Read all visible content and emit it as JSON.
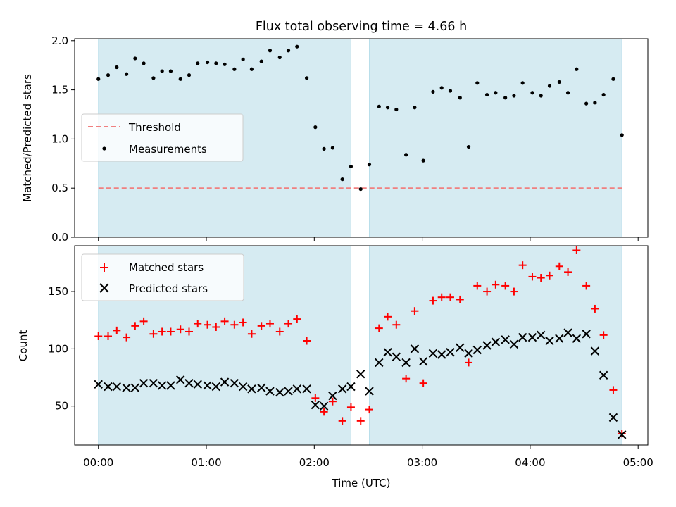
{
  "chart_data": {
    "title": "Flux total observing time = 4.66 h",
    "xlabel": "Time (UTC)",
    "x_units": "hours since 00:00 UTC",
    "xlim": [
      -0.22,
      5.09
    ],
    "xticks": [
      {
        "value": 0,
        "label": "00:00"
      },
      {
        "value": 1,
        "label": "01:00"
      },
      {
        "value": 2,
        "label": "02:00"
      },
      {
        "value": 3,
        "label": "03:00"
      },
      {
        "value": 4,
        "label": "04:00"
      },
      {
        "value": 5,
        "label": "05:00"
      }
    ],
    "shaded_intervals": [
      [
        0.0,
        2.34
      ],
      [
        2.51,
        4.85
      ]
    ],
    "shade_color": "#add8e6",
    "panels": [
      {
        "type": "scatter",
        "ylabel": "Matched/Predicted stars",
        "ylim": [
          0.0,
          2.02
        ],
        "yticks": [
          {
            "value": 0.0,
            "label": "0.0"
          },
          {
            "value": 0.5,
            "label": "0.5"
          },
          {
            "value": 1.0,
            "label": "1.0"
          },
          {
            "value": 1.5,
            "label": "1.5"
          },
          {
            "value": 2.0,
            "label": "2.0"
          }
        ],
        "legend": {
          "placement": "center-left",
          "entries": [
            "Threshold",
            "Measurements"
          ]
        },
        "threshold": {
          "name": "Threshold",
          "value": 0.5,
          "x_range": [
            0.0,
            4.85
          ],
          "color": "#f08080"
        },
        "series": [
          {
            "name": "Measurements",
            "color": "#000000",
            "x": [
              0.0,
              0.09,
              0.17,
              0.26,
              0.34,
              0.42,
              0.51,
              0.59,
              0.67,
              0.76,
              0.84,
              0.92,
              1.01,
              1.09,
              1.17,
              1.26,
              1.34,
              1.42,
              1.51,
              1.59,
              1.68,
              1.76,
              1.84,
              1.93,
              2.01,
              2.09,
              2.17,
              2.26,
              2.34,
              2.43,
              2.51,
              2.6,
              2.68,
              2.76,
              2.85,
              2.93,
              3.01,
              3.1,
              3.18,
              3.26,
              3.35,
              3.43,
              3.51,
              3.6,
              3.68,
              3.77,
              3.85,
              3.93,
              4.02,
              4.1,
              4.18,
              4.27,
              4.35,
              4.43,
              4.52,
              4.6,
              4.68,
              4.77,
              4.85
            ],
            "y": [
              1.61,
              1.65,
              1.73,
              1.66,
              1.82,
              1.77,
              1.62,
              1.69,
              1.69,
              1.61,
              1.65,
              1.77,
              1.78,
              1.77,
              1.76,
              1.71,
              1.81,
              1.71,
              1.79,
              1.9,
              1.83,
              1.9,
              1.94,
              1.62,
              1.12,
              0.9,
              0.91,
              0.59,
              0.72,
              0.49,
              0.74,
              1.33,
              1.32,
              1.3,
              0.84,
              1.32,
              0.78,
              1.48,
              1.52,
              1.49,
              1.42,
              0.92,
              1.57,
              1.45,
              1.47,
              1.42,
              1.44,
              1.57,
              1.47,
              1.44,
              1.54,
              1.58,
              1.47,
              1.71,
              1.36,
              1.37,
              1.45,
              1.61,
              1.04
            ]
          }
        ]
      },
      {
        "type": "scatter",
        "ylabel": "Count",
        "ylim": [
          16,
          190
        ],
        "yticks": [
          {
            "value": 50,
            "label": "50"
          },
          {
            "value": 100,
            "label": "100"
          },
          {
            "value": 150,
            "label": "150"
          }
        ],
        "legend": {
          "placement": "upper-left",
          "entries": [
            "Matched stars",
            "Predicted stars"
          ]
        },
        "series": [
          {
            "name": "Matched stars",
            "marker": "+",
            "color": "#ff0000",
            "x": [
              0.0,
              0.09,
              0.17,
              0.26,
              0.34,
              0.42,
              0.51,
              0.59,
              0.67,
              0.76,
              0.84,
              0.92,
              1.01,
              1.09,
              1.17,
              1.26,
              1.34,
              1.42,
              1.51,
              1.59,
              1.68,
              1.76,
              1.84,
              1.93,
              2.01,
              2.09,
              2.17,
              2.26,
              2.34,
              2.43,
              2.51,
              2.6,
              2.68,
              2.76,
              2.85,
              2.93,
              3.01,
              3.1,
              3.18,
              3.26,
              3.35,
              3.43,
              3.51,
              3.6,
              3.68,
              3.77,
              3.85,
              3.93,
              4.02,
              4.1,
              4.18,
              4.27,
              4.35,
              4.43,
              4.52,
              4.6,
              4.68,
              4.77,
              4.85
            ],
            "y": [
              111,
              111,
              116,
              110,
              120,
              124,
              113,
              115,
              115,
              117,
              115,
              122,
              121,
              119,
              124,
              121,
              123,
              113,
              120,
              122,
              115,
              122,
              126,
              107,
              57,
              45,
              54,
              37,
              49,
              37,
              47,
              118,
              128,
              121,
              74,
              133,
              70,
              142,
              145,
              145,
              143,
              88,
              155,
              150,
              156,
              155,
              150,
              173,
              163,
              162,
              164,
              172,
              167,
              186,
              155,
              135,
              112,
              64,
              26
            ]
          },
          {
            "name": "Predicted stars",
            "marker": "x",
            "color": "#000000",
            "x": [
              0.0,
              0.09,
              0.17,
              0.26,
              0.34,
              0.42,
              0.51,
              0.59,
              0.67,
              0.76,
              0.84,
              0.92,
              1.01,
              1.09,
              1.17,
              1.26,
              1.34,
              1.42,
              1.51,
              1.59,
              1.68,
              1.76,
              1.84,
              1.93,
              2.01,
              2.09,
              2.17,
              2.26,
              2.34,
              2.43,
              2.51,
              2.6,
              2.68,
              2.76,
              2.85,
              2.93,
              3.01,
              3.1,
              3.18,
              3.26,
              3.35,
              3.43,
              3.51,
              3.6,
              3.68,
              3.77,
              3.85,
              3.93,
              4.02,
              4.1,
              4.18,
              4.27,
              4.35,
              4.43,
              4.52,
              4.6,
              4.68,
              4.77,
              4.85
            ],
            "y": [
              69,
              67,
              67,
              66,
              66,
              70,
              70,
              68,
              68,
              73,
              70,
              69,
              68,
              67,
              71,
              70,
              67,
              65,
              66,
              63,
              62,
              63,
              65,
              65,
              51,
              50,
              59,
              65,
              67,
              78,
              63,
              88,
              97,
              93,
              88,
              100,
              89,
              96,
              95,
              97,
              101,
              96,
              99,
              103,
              106,
              108,
              104,
              110,
              110,
              112,
              107,
              109,
              114,
              109,
              113,
              98,
              77,
              40,
              25
            ]
          }
        ]
      }
    ]
  }
}
